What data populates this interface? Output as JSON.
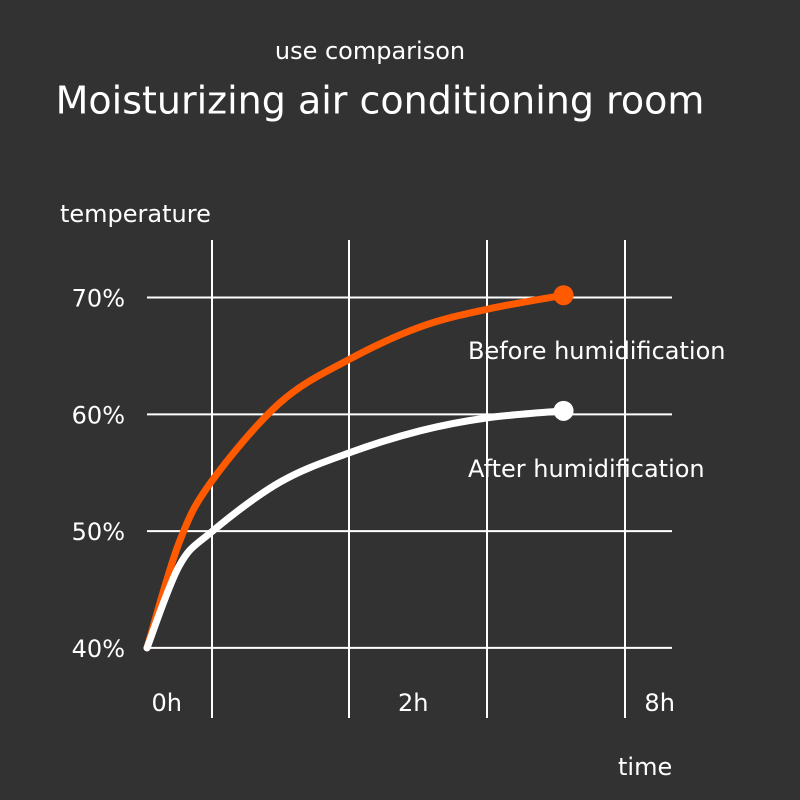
{
  "chart_data": {
    "type": "line",
    "subtitle": "use comparison",
    "title": "Moisturizing air conditioning room",
    "ylabel": "temperature",
    "xlabel": "time",
    "x": [
      -0.08,
      0.05,
      0.18,
      0.46,
      0.74,
      1.03,
      1.3,
      1.61
    ],
    "xlim": [
      -0.08,
      2.05
    ],
    "xticks": [
      {
        "value": 0,
        "label": "0h"
      },
      {
        "value": 1,
        "label": "2h"
      },
      {
        "value": 2,
        "label": "8h"
      }
    ],
    "ylim": [
      34,
      74.5
    ],
    "yticks": [
      {
        "value": 40,
        "label": "40%"
      },
      {
        "value": 50,
        "label": "50%"
      },
      {
        "value": 60,
        "label": "60%"
      },
      {
        "value": 70,
        "label": "70%"
      }
    ],
    "grid": true,
    "series": [
      {
        "name": "Before humidification",
        "color": "#ff5a00",
        "values": [
          40,
          49,
          54.2,
          61,
          64.7,
          67.5,
          69,
          70.2
        ]
      },
      {
        "name": "After humidification",
        "color": "#ffffff",
        "values": [
          40,
          47,
          49.9,
          54.2,
          56.7,
          58.6,
          59.7,
          60.3
        ]
      }
    ]
  }
}
